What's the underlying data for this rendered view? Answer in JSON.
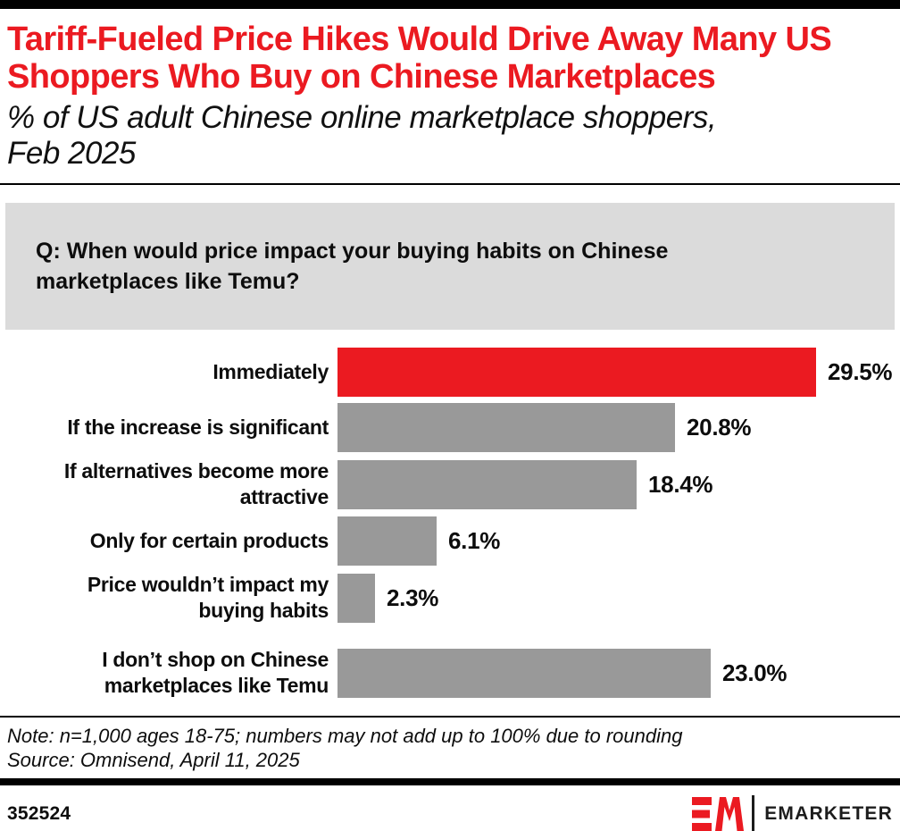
{
  "header": {
    "title": "Tariff-Fueled Price Hikes Would Drive Away Many US\nShoppers Who Buy on Chinese Marketplaces",
    "subtitle": "% of US adult Chinese online marketplace shoppers,\nFeb 2025"
  },
  "question": "Q: When would price impact your buying habits on Chinese\nmarketplaces like Temu?",
  "chart_data": {
    "type": "bar",
    "orientation": "horizontal",
    "title": "Tariff-Fueled Price Hikes Would Drive Away Many US Shoppers Who Buy on Chinese Marketplaces",
    "subtitle": "% of US adult Chinese online marketplace shoppers, Feb 2025",
    "categories": [
      "Immediately",
      "If the increase is significant",
      "If alternatives become more\nattractive",
      "Only for certain products",
      "Price wouldn’t impact my\nbuying habits",
      "I don’t shop on Chinese\nmarketplaces like Temu"
    ],
    "values": [
      29.5,
      20.8,
      18.4,
      6.1,
      2.3,
      23.0
    ],
    "value_labels": [
      "29.5%",
      "20.8%",
      "18.4%",
      "6.1%",
      "2.3%",
      "23.0%"
    ],
    "xlim": [
      0,
      33
    ],
    "grid": false,
    "legend": "none",
    "highlight_index": 0
  },
  "notes": {
    "note": "Note: n=1,000 ages 18-75; numbers may not add up to 100% due to rounding",
    "source": "Source: Omnisend, April 11, 2025"
  },
  "footer": {
    "chart_id": "352524",
    "brand": "EMARKETER"
  },
  "colors": {
    "accent_red": "#eb1a21",
    "bar_gray": "#999999",
    "question_bg": "#dbdbdb",
    "rule_black": "#000000"
  }
}
